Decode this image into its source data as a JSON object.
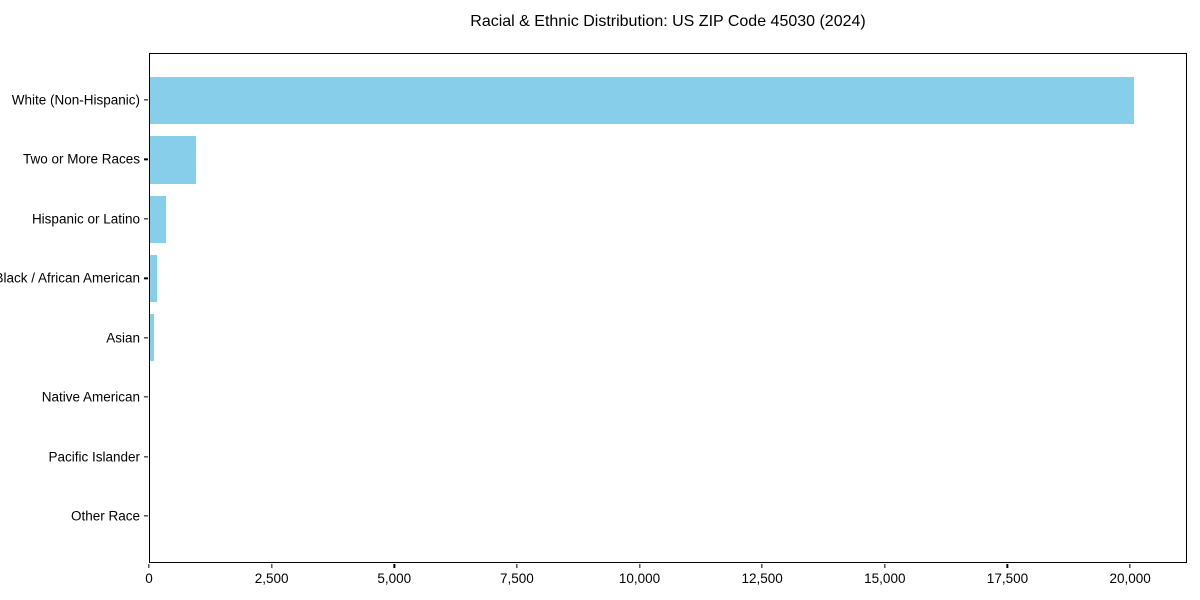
{
  "title": "Racial & Ethnic Distribution: US ZIP Code 45030 (2024)",
  "chart_data": {
    "type": "bar",
    "orientation": "horizontal",
    "title": "Racial & Ethnic Distribution: US ZIP Code 45030 (2024)",
    "categories": [
      "White (Non-Hispanic)",
      "Two or More Races",
      "Hispanic or Latino",
      "Black / African American",
      "Asian",
      "Native American",
      "Pacific Islander",
      "Other Race"
    ],
    "values": [
      20100,
      940,
      320,
      140,
      85,
      0,
      0,
      0
    ],
    "xlabel": "",
    "ylabel": "",
    "xlim": [
      0,
      21160
    ],
    "x_ticks": [
      0,
      2500,
      5000,
      7500,
      10000,
      12500,
      15000,
      17500,
      20000
    ],
    "x_tick_labels": [
      "0",
      "2,500",
      "5,000",
      "7,500",
      "10,000",
      "12,500",
      "15,000",
      "17,500",
      "20,000"
    ],
    "bar_color": "#87CEEB",
    "axis_color": "#000000",
    "grid": false,
    "legend": "none",
    "bar_height_fraction": 0.8
  }
}
